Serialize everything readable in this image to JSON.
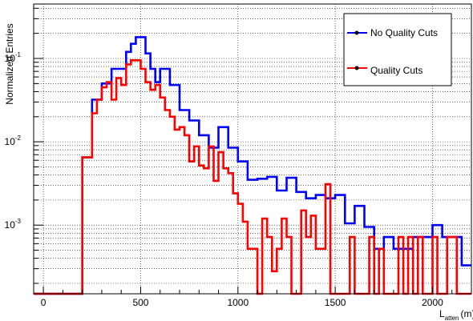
{
  "chart_data": {
    "type": "histogram",
    "ylabel": "Normalized Entries",
    "xlabel_main": "L",
    "xlabel_sub": "atten",
    "xlabel_unit": "(m)",
    "x_range": [
      -50,
      2200
    ],
    "y_range_log": [
      0.00015,
      0.45
    ],
    "y_scale": "log",
    "grid": "dotted",
    "x_ticks": [
      {
        "value": 0,
        "label": "0"
      },
      {
        "value": 500,
        "label": "500"
      },
      {
        "value": 1000,
        "label": "1000"
      },
      {
        "value": 1500,
        "label": "1500"
      },
      {
        "value": 2000,
        "label": "2000"
      }
    ],
    "y_ticks": [
      {
        "value": 0.1,
        "base": "10",
        "exp": "-1"
      },
      {
        "value": 0.01,
        "base": "10",
        "exp": "-2"
      },
      {
        "value": 0.001,
        "base": "10",
        "exp": "-3"
      }
    ],
    "legend_position": "top-right",
    "series": [
      {
        "name": "No Quality Cuts",
        "color": "#0000ff",
        "points": [
          [
            -50,
            0.00015
          ],
          [
            200,
            0.00015
          ],
          [
            200,
            0.0065
          ],
          [
            250,
            0.0065
          ],
          [
            250,
            0.032
          ],
          [
            300,
            0.032
          ],
          [
            300,
            0.05
          ],
          [
            350,
            0.05
          ],
          [
            350,
            0.075
          ],
          [
            400,
            0.075
          ],
          [
            400,
            0.075
          ],
          [
            425,
            0.075
          ],
          [
            425,
            0.12
          ],
          [
            450,
            0.12
          ],
          [
            450,
            0.15
          ],
          [
            475,
            0.15
          ],
          [
            475,
            0.18
          ],
          [
            525,
            0.18
          ],
          [
            525,
            0.115
          ],
          [
            550,
            0.115
          ],
          [
            550,
            0.075
          ],
          [
            575,
            0.075
          ],
          [
            575,
            0.052
          ],
          [
            600,
            0.052
          ],
          [
            600,
            0.075
          ],
          [
            650,
            0.075
          ],
          [
            650,
            0.048
          ],
          [
            700,
            0.048
          ],
          [
            700,
            0.024
          ],
          [
            750,
            0.024
          ],
          [
            750,
            0.018
          ],
          [
            800,
            0.018
          ],
          [
            800,
            0.012
          ],
          [
            850,
            0.012
          ],
          [
            850,
            0.0085
          ],
          [
            900,
            0.0085
          ],
          [
            900,
            0.015
          ],
          [
            950,
            0.015
          ],
          [
            950,
            0.0085
          ],
          [
            1000,
            0.0085
          ],
          [
            1000,
            0.0058
          ],
          [
            1050,
            0.0058
          ],
          [
            1050,
            0.0035
          ],
          [
            1100,
            0.0035
          ],
          [
            1100,
            0.0036
          ],
          [
            1150,
            0.0036
          ],
          [
            1150,
            0.0038
          ],
          [
            1200,
            0.0038
          ],
          [
            1200,
            0.0026
          ],
          [
            1250,
            0.0026
          ],
          [
            1250,
            0.0037
          ],
          [
            1300,
            0.0037
          ],
          [
            1300,
            0.0025
          ],
          [
            1350,
            0.0025
          ],
          [
            1350,
            0.0021
          ],
          [
            1400,
            0.0021
          ],
          [
            1400,
            0.0023
          ],
          [
            1450,
            0.0023
          ],
          [
            1450,
            0.0021
          ],
          [
            1500,
            0.0021
          ],
          [
            1500,
            0.0023
          ],
          [
            1550,
            0.0023
          ],
          [
            1550,
            0.00105
          ],
          [
            1600,
            0.00105
          ],
          [
            1600,
            0.0017
          ],
          [
            1650,
            0.0017
          ],
          [
            1650,
            0.00095
          ],
          [
            1700,
            0.00095
          ],
          [
            1700,
            0.00052
          ],
          [
            1750,
            0.00052
          ],
          [
            1750,
            0.00072
          ],
          [
            1800,
            0.00072
          ],
          [
            1800,
            0.00052
          ],
          [
            1850,
            0.00052
          ],
          [
            1850,
            0.00052
          ],
          [
            1900,
            0.00052
          ],
          [
            1900,
            0.00072
          ],
          [
            1950,
            0.00072
          ],
          [
            1950,
            0.00072
          ],
          [
            2000,
            0.00072
          ],
          [
            2000,
            0.001
          ],
          [
            2050,
            0.001
          ],
          [
            2050,
            0.00072
          ],
          [
            2100,
            0.00072
          ],
          [
            2100,
            0.00072
          ],
          [
            2150,
            0.00072
          ],
          [
            2150,
            0.00033
          ],
          [
            2200,
            0.00033
          ]
        ]
      },
      {
        "name": "Quality Cuts",
        "color": "#ff0000",
        "points": [
          [
            -50,
            0.00015
          ],
          [
            200,
            0.00015
          ],
          [
            200,
            0.0065
          ],
          [
            250,
            0.0065
          ],
          [
            250,
            0.022
          ],
          [
            275,
            0.022
          ],
          [
            275,
            0.032
          ],
          [
            300,
            0.032
          ],
          [
            300,
            0.045
          ],
          [
            325,
            0.045
          ],
          [
            325,
            0.052
          ],
          [
            350,
            0.052
          ],
          [
            350,
            0.032
          ],
          [
            375,
            0.032
          ],
          [
            375,
            0.058
          ],
          [
            400,
            0.058
          ],
          [
            400,
            0.048
          ],
          [
            425,
            0.048
          ],
          [
            425,
            0.085
          ],
          [
            450,
            0.085
          ],
          [
            450,
            0.095
          ],
          [
            475,
            0.095
          ],
          [
            475,
            0.095
          ],
          [
            500,
            0.095
          ],
          [
            500,
            0.075
          ],
          [
            525,
            0.075
          ],
          [
            525,
            0.052
          ],
          [
            550,
            0.052
          ],
          [
            550,
            0.042
          ],
          [
            575,
            0.042
          ],
          [
            575,
            0.048
          ],
          [
            600,
            0.048
          ],
          [
            600,
            0.034
          ],
          [
            625,
            0.034
          ],
          [
            625,
            0.024
          ],
          [
            650,
            0.024
          ],
          [
            650,
            0.02
          ],
          [
            675,
            0.02
          ],
          [
            675,
            0.014
          ],
          [
            700,
            0.014
          ],
          [
            700,
            0.015
          ],
          [
            725,
            0.015
          ],
          [
            725,
            0.012
          ],
          [
            750,
            0.012
          ],
          [
            750,
            0.0058
          ],
          [
            775,
            0.0058
          ],
          [
            775,
            0.0088
          ],
          [
            800,
            0.0088
          ],
          [
            800,
            0.0052
          ],
          [
            825,
            0.0052
          ],
          [
            825,
            0.0048
          ],
          [
            850,
            0.0048
          ],
          [
            850,
            0.0088
          ],
          [
            875,
            0.0088
          ],
          [
            875,
            0.0034
          ],
          [
            900,
            0.0034
          ],
          [
            900,
            0.0075
          ],
          [
            925,
            0.0075
          ],
          [
            925,
            0.0048
          ],
          [
            950,
            0.0048
          ],
          [
            950,
            0.0042
          ],
          [
            975,
            0.0042
          ],
          [
            975,
            0.0024
          ],
          [
            1000,
            0.0024
          ],
          [
            1000,
            0.0018
          ],
          [
            1025,
            0.0018
          ],
          [
            1025,
            0.0011
          ],
          [
            1050,
            0.0011
          ],
          [
            1050,
            0.00052
          ],
          [
            1100,
            0.00052
          ],
          [
            1100,
            0.00015
          ],
          [
            1125,
            0.00015
          ],
          [
            1125,
            0.0012
          ],
          [
            1150,
            0.0012
          ],
          [
            1150,
            0.00072
          ],
          [
            1175,
            0.00072
          ],
          [
            1175,
            0.00028
          ],
          [
            1200,
            0.00028
          ],
          [
            1200,
            0.00052
          ],
          [
            1225,
            0.00052
          ],
          [
            1225,
            0.0012
          ],
          [
            1250,
            0.0012
          ],
          [
            1250,
            0.00072
          ],
          [
            1275,
            0.00072
          ],
          [
            1275,
            0.00015
          ],
          [
            1325,
            0.00015
          ],
          [
            1325,
            0.0015
          ],
          [
            1350,
            0.0015
          ],
          [
            1350,
            0.00072
          ],
          [
            1375,
            0.00072
          ],
          [
            1375,
            0.0013
          ],
          [
            1400,
            0.0013
          ],
          [
            1400,
            0.00052
          ],
          [
            1450,
            0.00052
          ],
          [
            1450,
            0.0031
          ],
          [
            1475,
            0.0031
          ],
          [
            1475,
            0.00015
          ],
          [
            1575,
            0.00015
          ],
          [
            1575,
            0.00072
          ],
          [
            1600,
            0.00072
          ],
          [
            1600,
            0.00015
          ],
          [
            1675,
            0.00015
          ],
          [
            1675,
            0.00072
          ],
          [
            1700,
            0.00072
          ],
          [
            1700,
            0.00015
          ],
          [
            1725,
            0.00015
          ],
          [
            1725,
            0.00052
          ],
          [
            1750,
            0.00052
          ],
          [
            1750,
            0.00015
          ],
          [
            1825,
            0.00015
          ],
          [
            1825,
            0.00072
          ],
          [
            1850,
            0.00072
          ],
          [
            1850,
            0.00015
          ],
          [
            1875,
            0.00015
          ],
          [
            1875,
            0.00072
          ],
          [
            1900,
            0.00072
          ],
          [
            1900,
            0.00015
          ],
          [
            1925,
            0.00015
          ],
          [
            1925,
            0.00072
          ],
          [
            1950,
            0.00072
          ],
          [
            1950,
            0.00015
          ],
          [
            2000,
            0.00015
          ],
          [
            2000,
            0.00072
          ],
          [
            2025,
            0.00072
          ],
          [
            2025,
            0.00015
          ],
          [
            2075,
            0.00015
          ],
          [
            2075,
            0.00072
          ],
          [
            2125,
            0.00072
          ],
          [
            2125,
            0.00015
          ],
          [
            2200,
            0.00015
          ]
        ]
      }
    ]
  }
}
